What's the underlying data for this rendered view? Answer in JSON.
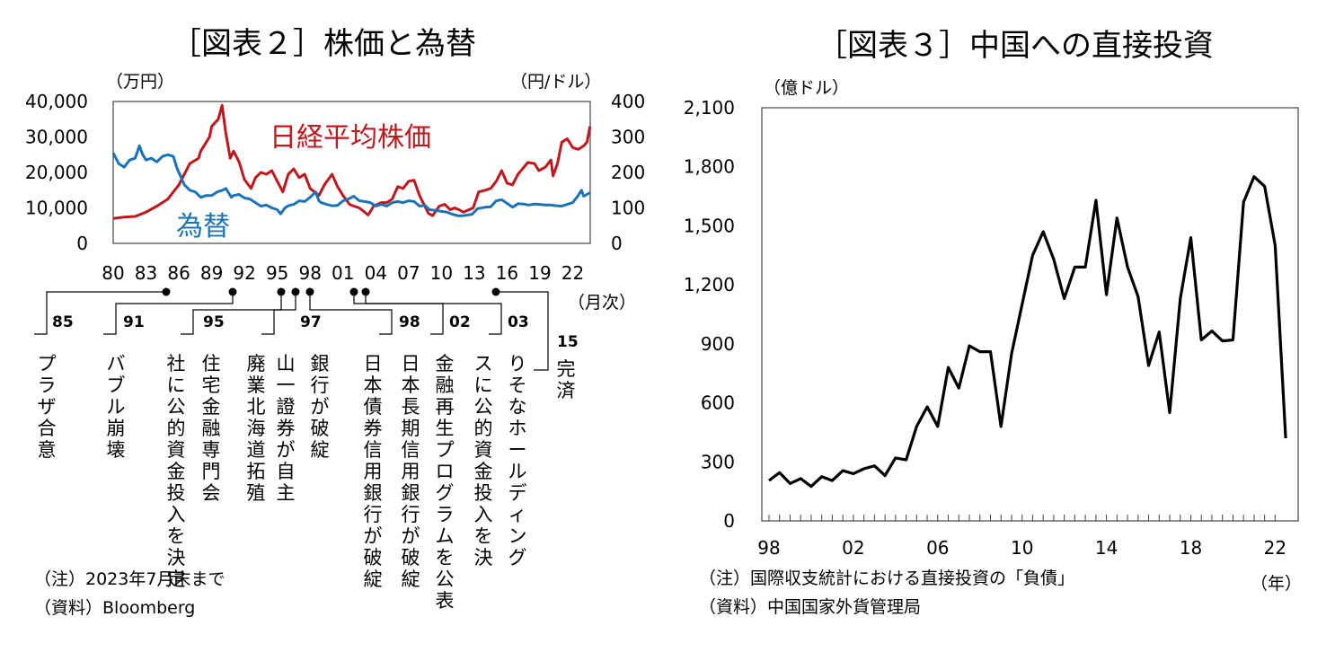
{
  "chart_data": [
    {
      "type": "line",
      "title": "［図表２］株価と為替",
      "left_axis_unit": "（万円）",
      "right_axis_unit": "（円/ドル）",
      "x_axis_unit": "（月次）",
      "yticks_left": [
        "40,000",
        "30,000",
        "20,000",
        "10,000",
        "0"
      ],
      "yticks_right": [
        "400",
        "300",
        "200",
        "100",
        "0"
      ],
      "ylim_left": [
        0,
        40000
      ],
      "ylim_right": [
        0,
        400
      ],
      "xlim": [
        1980,
        2023.6
      ],
      "xtick_labels": [
        "80",
        "83",
        "86",
        "89",
        "92",
        "95",
        "98",
        "01",
        "04",
        "07",
        "10",
        "13",
        "16",
        "19",
        "22"
      ],
      "grid": false,
      "series": [
        {
          "name": "日経平均株価",
          "axis": "left",
          "color": "#c0161c",
          "points": [
            [
              1980,
              7000
            ],
            [
              1981,
              7400
            ],
            [
              1982,
              7600
            ],
            [
              1983,
              8800
            ],
            [
              1984,
              10500
            ],
            [
              1985,
              12500
            ],
            [
              1986,
              16500
            ],
            [
              1987,
              22500
            ],
            [
              1987.8,
              24000
            ],
            [
              1988,
              26000
            ],
            [
              1988.8,
              30000
            ],
            [
              1989,
              33000
            ],
            [
              1989.6,
              35000
            ],
            [
              1989.95,
              38900
            ],
            [
              1990.3,
              31000
            ],
            [
              1990.7,
              24000
            ],
            [
              1991,
              26000
            ],
            [
              1991.5,
              23000
            ],
            [
              1992,
              18000
            ],
            [
              1992.6,
              15500
            ],
            [
              1993,
              18500
            ],
            [
              1993.5,
              20000
            ],
            [
              1994,
              19500
            ],
            [
              1994.5,
              20500
            ],
            [
              1995,
              17500
            ],
            [
              1995.5,
              14500
            ],
            [
              1996,
              19500
            ],
            [
              1996.5,
              21000
            ],
            [
              1997,
              18500
            ],
            [
              1997.5,
              19500
            ],
            [
              1998,
              15500
            ],
            [
              1998.8,
              13500
            ],
            [
              1999.3,
              16500
            ],
            [
              2000,
              19500
            ],
            [
              2000.5,
              16000
            ],
            [
              2001,
              13500
            ],
            [
              2001.6,
              11000
            ],
            [
              2002,
              10500
            ],
            [
              2002.5,
              10000
            ],
            [
              2003.3,
              8000
            ],
            [
              2003.8,
              10500
            ],
            [
              2004.5,
              11500
            ],
            [
              2005,
              11500
            ],
            [
              2005.5,
              12500
            ],
            [
              2006,
              16000
            ],
            [
              2006.5,
              15500
            ],
            [
              2007,
              17500
            ],
            [
              2007.5,
              17800
            ],
            [
              2008,
              13500
            ],
            [
              2008.8,
              8500
            ],
            [
              2009.2,
              7800
            ],
            [
              2009.8,
              10500
            ],
            [
              2010.3,
              11000
            ],
            [
              2010.8,
              9500
            ],
            [
              2011.2,
              10000
            ],
            [
              2011.6,
              9500
            ],
            [
              2012,
              8800
            ],
            [
              2012.9,
              10000
            ],
            [
              2013.4,
              14500
            ],
            [
              2014,
              15000
            ],
            [
              2014.5,
              15500
            ],
            [
              2015,
              17500
            ],
            [
              2015.5,
              20500
            ],
            [
              2016,
              17000
            ],
            [
              2016.5,
              16500
            ],
            [
              2017,
              19500
            ],
            [
              2017.9,
              22800
            ],
            [
              2018.5,
              22500
            ],
            [
              2018.9,
              20500
            ],
            [
              2019.5,
              21500
            ],
            [
              2020,
              23500
            ],
            [
              2020.2,
              19000
            ],
            [
              2020.6,
              22500
            ],
            [
              2021,
              28500
            ],
            [
              2021.5,
              29500
            ],
            [
              2022,
              27000
            ],
            [
              2022.5,
              26500
            ],
            [
              2023,
              27500
            ],
            [
              2023.3,
              28500
            ],
            [
              2023.58,
              33000
            ]
          ]
        },
        {
          "name": "為替",
          "axis": "right",
          "color": "#1b72b7",
          "points": [
            [
              1980,
              255
            ],
            [
              1980.5,
              225
            ],
            [
              1981,
              215
            ],
            [
              1981.5,
              235
            ],
            [
              1982,
              240
            ],
            [
              1982.4,
              275
            ],
            [
              1982.7,
              250
            ],
            [
              1983,
              235
            ],
            [
              1983.5,
              240
            ],
            [
              1984,
              230
            ],
            [
              1984.5,
              245
            ],
            [
              1985,
              250
            ],
            [
              1985.5,
              245
            ],
            [
              1985.8,
              215
            ],
            [
              1986,
              200
            ],
            [
              1986.5,
              165
            ],
            [
              1987,
              150
            ],
            [
              1987.5,
              145
            ],
            [
              1988,
              130
            ],
            [
              1988.5,
              135
            ],
            [
              1989,
              135
            ],
            [
              1989.5,
              145
            ],
            [
              1990,
              150
            ],
            [
              1990.3,
              155
            ],
            [
              1990.8,
              130
            ],
            [
              1991,
              135
            ],
            [
              1991.5,
              138
            ],
            [
              1992,
              128
            ],
            [
              1992.5,
              125
            ],
            [
              1993,
              115
            ],
            [
              1993.5,
              105
            ],
            [
              1994,
              108
            ],
            [
              1994.5,
              100
            ],
            [
              1995,
              95
            ],
            [
              1995.3,
              83
            ],
            [
              1995.7,
              100
            ],
            [
              1996,
              106
            ],
            [
              1996.5,
              110
            ],
            [
              1997,
              120
            ],
            [
              1997.5,
              118
            ],
            [
              1998,
              130
            ],
            [
              1998.5,
              145
            ],
            [
              1998.8,
              120
            ],
            [
              1999,
              115
            ],
            [
              1999.5,
              110
            ],
            [
              2000,
              106
            ],
            [
              2000.5,
              107
            ],
            [
              2001,
              120
            ],
            [
              2001.5,
              125
            ],
            [
              2002,
              133
            ],
            [
              2002.5,
              120
            ],
            [
              2003,
              118
            ],
            [
              2003.5,
              115
            ],
            [
              2004,
              105
            ],
            [
              2004.5,
              110
            ],
            [
              2005,
              105
            ],
            [
              2005.5,
              115
            ],
            [
              2006,
              118
            ],
            [
              2006.5,
              115
            ],
            [
              2007,
              120
            ],
            [
              2007.5,
              118
            ],
            [
              2008,
              105
            ],
            [
              2008.5,
              107
            ],
            [
              2008.9,
              95
            ],
            [
              2009.5,
              93
            ],
            [
              2010,
              90
            ],
            [
              2010.5,
              88
            ],
            [
              2011,
              82
            ],
            [
              2011.5,
              78
            ],
            [
              2012,
              78
            ],
            [
              2012.8,
              82
            ],
            [
              2013.3,
              98
            ],
            [
              2014,
              102
            ],
            [
              2014.5,
              103
            ],
            [
              2015,
              120
            ],
            [
              2015.5,
              123
            ],
            [
              2016,
              113
            ],
            [
              2016.5,
              102
            ],
            [
              2017,
              112
            ],
            [
              2017.5,
              111
            ],
            [
              2018,
              108
            ],
            [
              2018.5,
              111
            ],
            [
              2019,
              110
            ],
            [
              2019.5,
              108
            ],
            [
              2020,
              108
            ],
            [
              2020.5,
              106
            ],
            [
              2021,
              105
            ],
            [
              2021.5,
              110
            ],
            [
              2022,
              115
            ],
            [
              2022.5,
              135
            ],
            [
              2022.8,
              150
            ],
            [
              2023,
              133
            ],
            [
              2023.3,
              138
            ],
            [
              2023.58,
              143
            ]
          ]
        }
      ],
      "events": [
        {
          "year_label": "85",
          "text": "プラザ合意",
          "date": 1985.7
        },
        {
          "year_label": "91",
          "text": "バブル崩壊",
          "date": 1991.2
        },
        {
          "year_label": "95",
          "text": "住宅金融専門会社に公的資金投入を決定",
          "date": 1995.9
        },
        {
          "year_label": "97",
          "text": "山一證券が自主廃業北海道拓殖銀行が破綻",
          "date": 1997.3
        },
        {
          "year_label": "98",
          "text": "日本長期信用銀行が破綻日本債券信用銀行が破綻",
          "date": 1998.9
        },
        {
          "year_label": "02",
          "text": "金融再生プログラムを公表",
          "date": 2002.8
        },
        {
          "year_label": "03",
          "text": "りそなホールディングスに公的資金投入を決定",
          "date": 2003.5
        },
        {
          "year_label": "15",
          "text": "完済",
          "date": 2015.4
        }
      ]
    },
    {
      "type": "line",
      "title": "［図表３］中国への直接投資",
      "y_axis_unit": "（億ドル）",
      "x_axis_unit": "（年）",
      "yticks": [
        "2,100",
        "1,800",
        "1,500",
        "1,200",
        "900",
        "600",
        "300",
        "0"
      ],
      "ylim": [
        0,
        2100
      ],
      "xtick_labels": [
        "98",
        "02",
        "06",
        "10",
        "14",
        "18",
        "22"
      ],
      "grid": false,
      "series": [
        {
          "name": "",
          "color": "#000000",
          "points": [
            [
              1998,
              205
            ],
            [
              1998.5,
              245
            ],
            [
              1999,
              190
            ],
            [
              1999.5,
              215
            ],
            [
              2000,
              175
            ],
            [
              2000.5,
              225
            ],
            [
              2001,
              205
            ],
            [
              2001.5,
              255
            ],
            [
              2002,
              240
            ],
            [
              2002.5,
              265
            ],
            [
              2003,
              280
            ],
            [
              2003.5,
              230
            ],
            [
              2004,
              320
            ],
            [
              2004.5,
              310
            ],
            [
              2005,
              480
            ],
            [
              2005.5,
              580
            ],
            [
              2006,
              480
            ],
            [
              2006.5,
              780
            ],
            [
              2007,
              675
            ],
            [
              2007.5,
              890
            ],
            [
              2008,
              860
            ],
            [
              2008.5,
              860
            ],
            [
              2009,
              480
            ],
            [
              2009.5,
              850
            ],
            [
              2010,
              1100
            ],
            [
              2010.5,
              1350
            ],
            [
              2011,
              1470
            ],
            [
              2011.5,
              1330
            ],
            [
              2012,
              1130
            ],
            [
              2012.5,
              1290
            ],
            [
              2013,
              1290
            ],
            [
              2013.5,
              1630
            ],
            [
              2014,
              1150
            ],
            [
              2014.5,
              1540
            ],
            [
              2015,
              1290
            ],
            [
              2015.5,
              1140
            ],
            [
              2016,
              790
            ],
            [
              2016.5,
              960
            ],
            [
              2017,
              550
            ],
            [
              2017.5,
              1130
            ],
            [
              2018,
              1440
            ],
            [
              2018.5,
              920
            ],
            [
              2019,
              965
            ],
            [
              2019.5,
              915
            ],
            [
              2020,
              920
            ],
            [
              2020.5,
              1620
            ],
            [
              2021,
              1750
            ],
            [
              2021.5,
              1700
            ],
            [
              2022,
              1400
            ],
            [
              2022.5,
              420
            ]
          ]
        }
      ]
    }
  ],
  "chart2": {
    "series_label_stock": "日経平均株価",
    "series_label_fx": "為替",
    "note": "（注）2023年7月末まで",
    "source": "（資料）Bloomberg"
  },
  "chart3": {
    "note": "（注）国際収支統計における直接投資の「負債」",
    "source": "（資料）中国国家外貨管理局"
  }
}
